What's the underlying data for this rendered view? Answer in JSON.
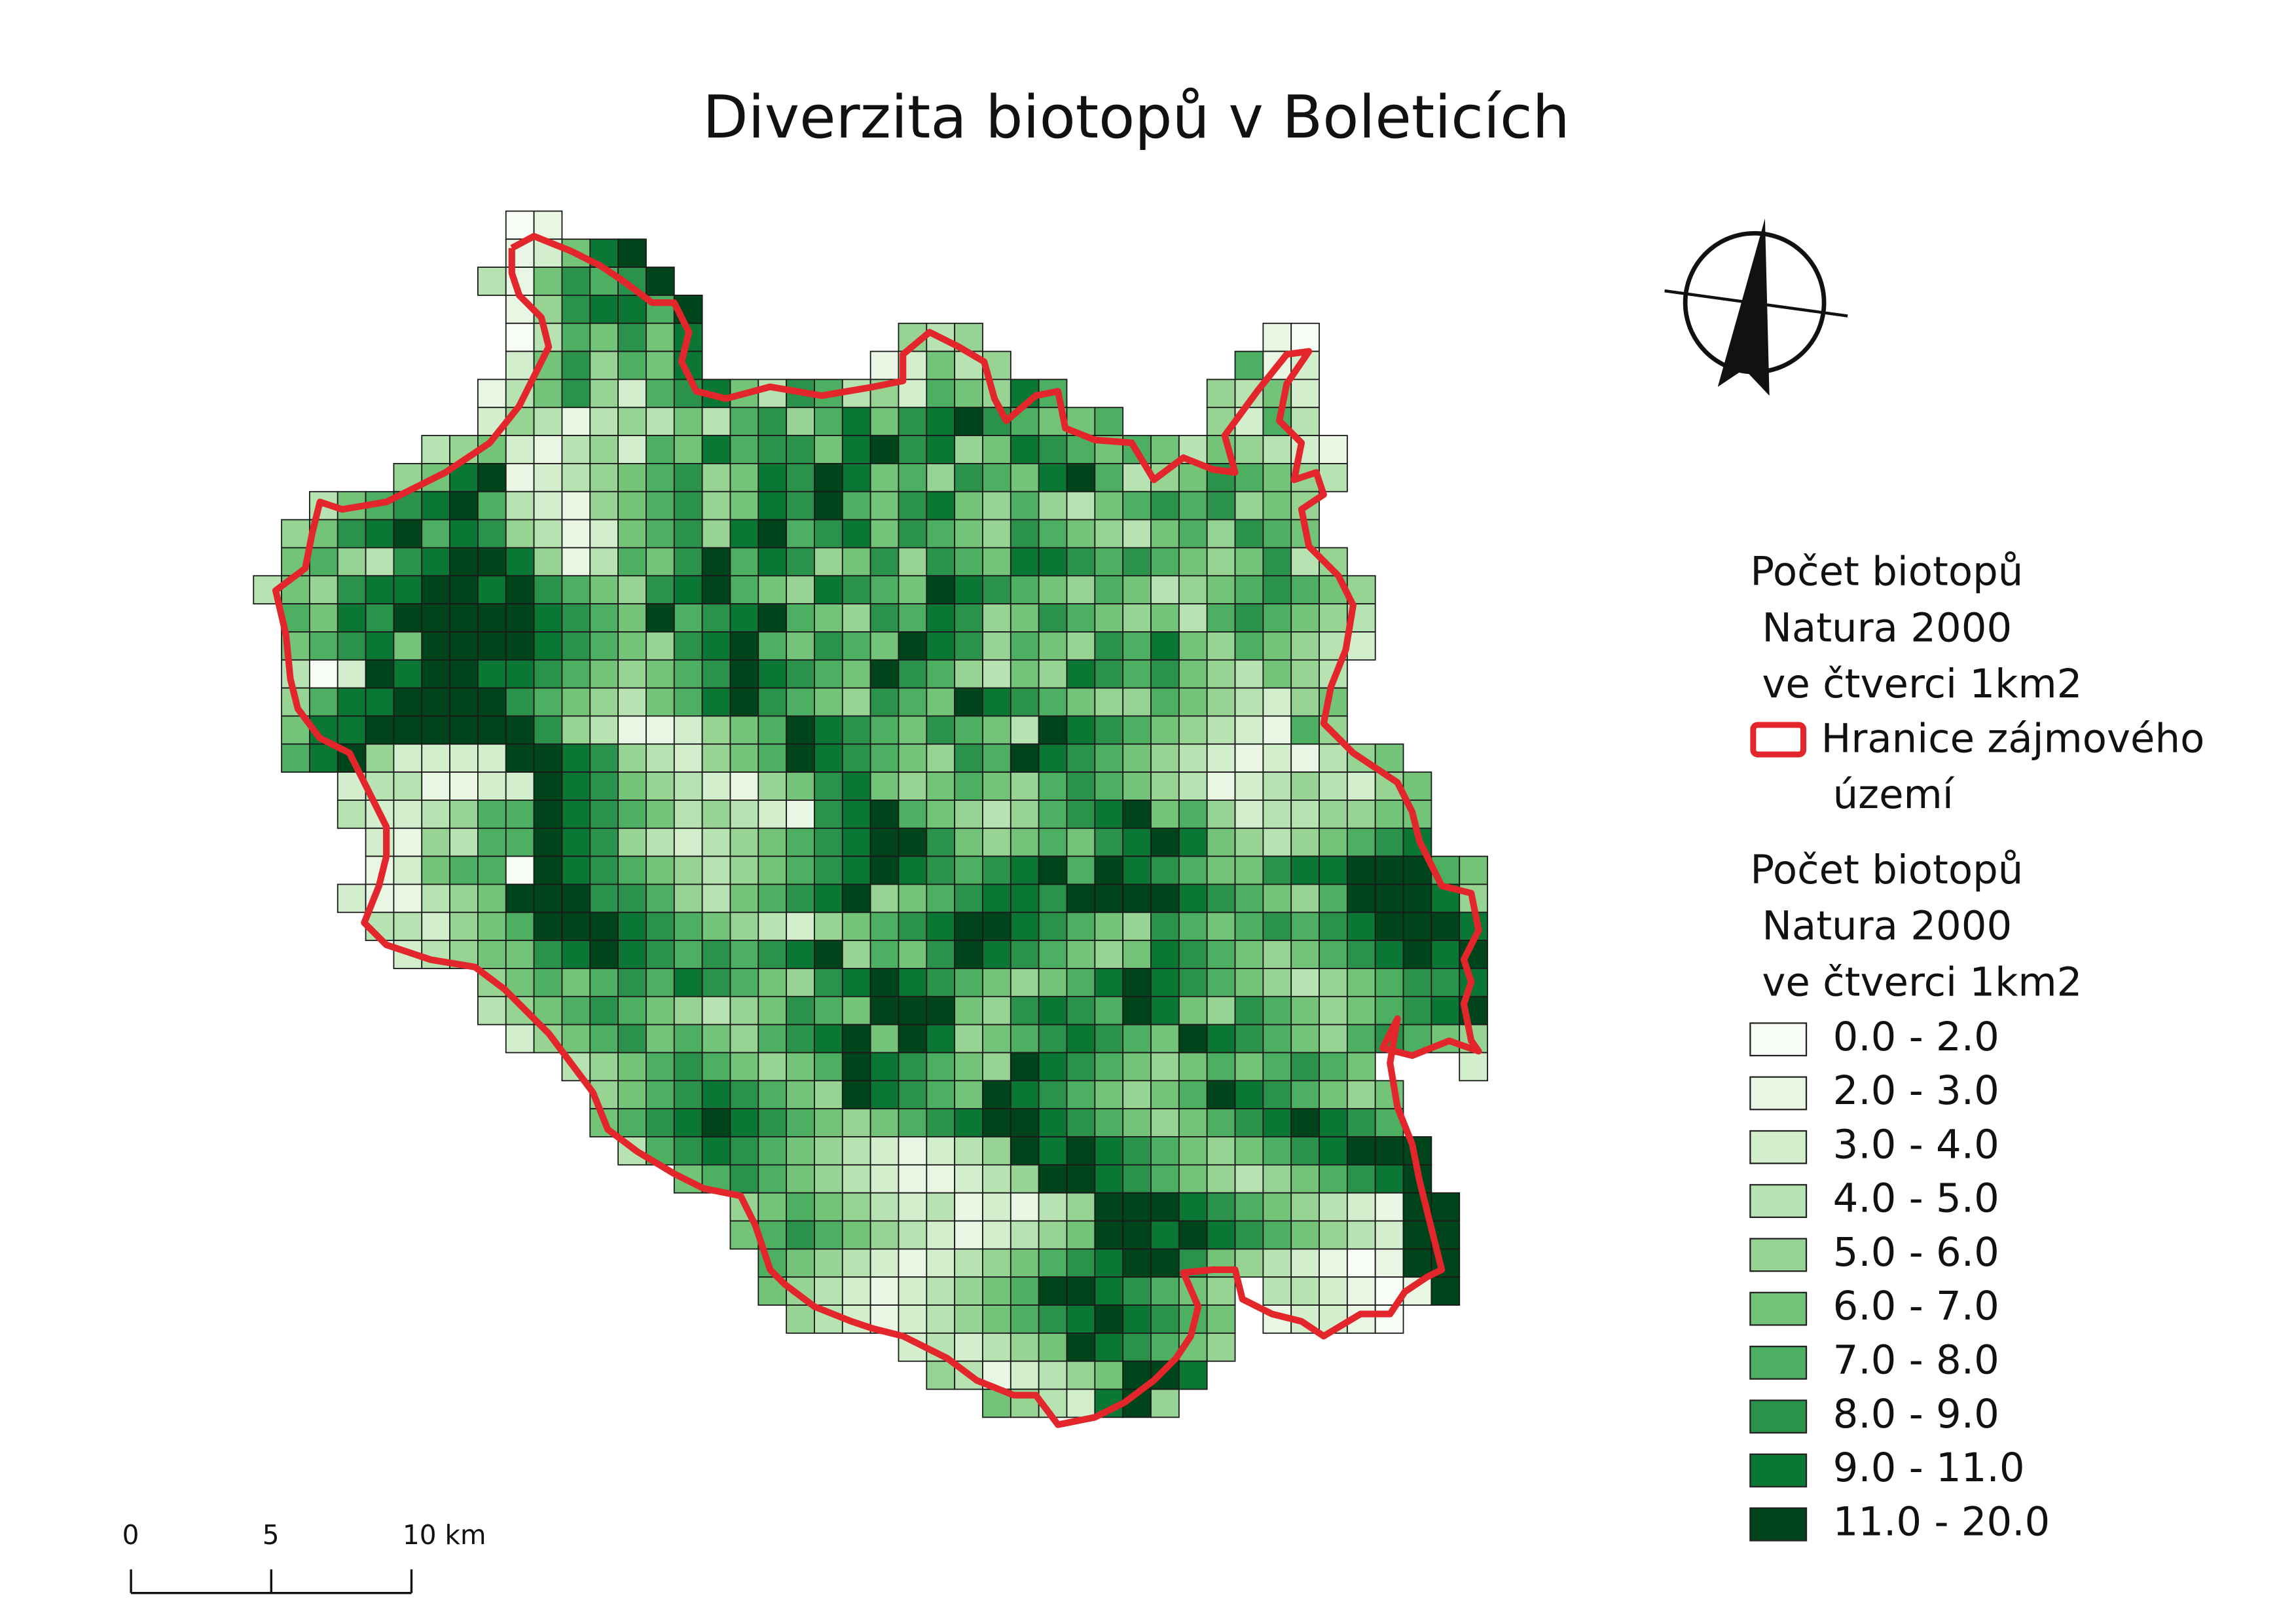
{
  "title": "Diverzita biotopů v Boleticích",
  "grid": {
    "rows": [
      ".........01",
      ".........12589",
      "........3157679",
      ".........1478869",
      ".........0365758.......434..........10",
      ".........2574658......12534........612",
      "........135742678537634265486.....4352",
      "........24313435367468578976556...4263",
      "......345213426586775897845876565354321",
      ".....4589123456745879856476589634576543",
      "..356789632145674587965785464356767454",
      ".4578968743125674896785765476543564765",
      ".56437899841365796874574765887676545734",
      "3547889989765478965487659876546534567654",
      ".658799999876596789654768745765453676543",
      ".567859999876547896576598746547685465432",
      ".30298998876545679876597643548767543543",
      ".46889999765435689765476598765446543245",
      ".58899999974311245698765765398765432164",
      ".6894222299874324569876547698765432121345",
      "...233112298754321457854565467654312343245",
      "...322346698765343217896543467895642334455",
      "....21436698743234567899754565789854345678",
      "....1256609876543456789876789698765578899965",
      "...21134599977643567894567887999987654699984",
      "....3324569998765432456789987654765676789998",
      ".....234557898767678946579876545876545678989",
      "........456567687654789876545689876543456778",
      "........345676543457659995478769854765456789",
      ".........24567565467895984567876598765467654",
      "...........34567654569876549876545656765...2",
      "............45678765498765987654569876545",
      "............56789876545678998765456789876",
      ".............36787654321234989876545678999",
      "...............567654321123499876543456789",
      ".................45654323121349998765432199",
      ".................56765432123459989876543299",
      "..................6543212345678997543210199",
      "..................54321234569987654.3321019",
      "...................4321234567898765.12210",
      ".......................232345987654",
      "........................4312345998",
      "..........................5432894"
    ]
  },
  "legend": {
    "boundary_title": [
      "Počet biotopů",
      "Natura 2000",
      "ve čtverci 1km2"
    ],
    "boundary_label": [
      "Hranice zájmového",
      "území"
    ],
    "boundary_color": "#e3262b",
    "grid_title": [
      "Počet biotopů",
      "Natura 2000",
      "ve čtverci 1km2"
    ],
    "classes": [
      {
        "label": "0.0 - 2.0",
        "color": "#f7fcf5"
      },
      {
        "label": "2.0 - 3.0",
        "color": "#e8f6e3"
      },
      {
        "label": "3.0 - 4.0",
        "color": "#d3eecd"
      },
      {
        "label": "4.0 - 5.0",
        "color": "#b7e2b1"
      },
      {
        "label": "5.0 - 6.0",
        "color": "#97d494"
      },
      {
        "label": "6.0 - 7.0",
        "color": "#73c378"
      },
      {
        "label": "7.0 - 8.0",
        "color": "#4daf62"
      },
      {
        "label": "8.0 - 9.0",
        "color": "#2a924a"
      },
      {
        "label": "9.0 - 11.0",
        "color": "#0b7734"
      },
      {
        "label": "11.0 - 20.0",
        "color": "#00441b"
      }
    ]
  },
  "scale_bar": {
    "lim": [
      0,
      10
    ],
    "ticks": [
      0,
      5,
      {
        "value": 10,
        "label": "10 km"
      }
    ]
  }
}
